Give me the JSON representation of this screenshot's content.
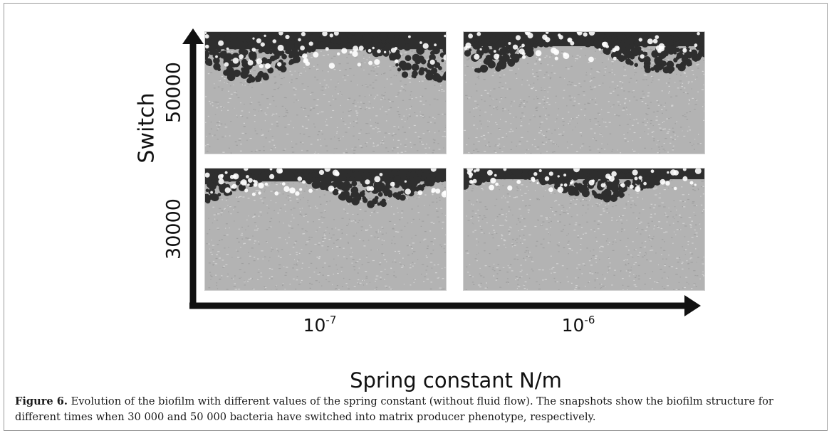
{
  "figure": {
    "y_axis_label": "Switch",
    "y_ticks": [
      "50000",
      "30000"
    ],
    "x_axis_label": "Spring constant N/m",
    "x_ticks": [
      {
        "base": "10",
        "exponent": "-7"
      },
      {
        "base": "10",
        "exponent": "-6"
      }
    ],
    "panels": [
      {
        "switch": "50000",
        "spring_constant": "10-7",
        "biofilm_depth": 0.4
      },
      {
        "switch": "50000",
        "spring_constant": "10-6",
        "biofilm_depth": 0.33
      },
      {
        "switch": "30000",
        "spring_constant": "10-7",
        "biofilm_depth": 0.3
      },
      {
        "switch": "30000",
        "spring_constant": "10-6",
        "biofilm_depth": 0.25
      }
    ],
    "colors": {
      "background": "#b3b3b3",
      "biofilm": "#2e2e2e",
      "axis": "#111111"
    }
  },
  "caption": {
    "label": "Figure 6.",
    "text": " Evolution of the biofilm with different values of the spring constant (without fluid flow). The snapshots show the biofilm structure for different times when 30 000 and 50 000 bacteria have switched into matrix producer phenotype, respectively."
  }
}
